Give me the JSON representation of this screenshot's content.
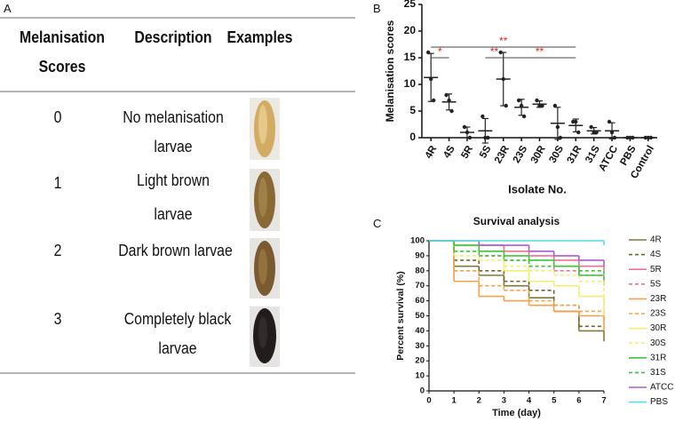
{
  "panel_labels": [
    "A",
    "B",
    "C"
  ],
  "table": {
    "headers": [
      "Melanisation Scores",
      "Description",
      "Examples"
    ],
    "rows": [
      [
        "0",
        "No melanisation larvae"
      ],
      [
        "1",
        "Light brown larvae"
      ],
      [
        "2",
        "Dark brown larvae"
      ],
      [
        "3",
        "Completely black larvae"
      ]
    ]
  },
  "chart_data": [
    {
      "type": "dotplot",
      "ylabel": "Melanisation scores",
      "xlabel": "Isolate No.",
      "categories": [
        "4R",
        "4S",
        "5R",
        "5S",
        "23R",
        "23S",
        "30R",
        "30S",
        "31R",
        "31S",
        "ATCC",
        "PBS",
        "Control"
      ],
      "points": [
        [
          16,
          11,
          7
        ],
        [
          8,
          7,
          5
        ],
        [
          2,
          1,
          0
        ],
        [
          4,
          0,
          0
        ],
        [
          16,
          11,
          6
        ],
        [
          7,
          6,
          4
        ],
        [
          7,
          6,
          6
        ],
        [
          6,
          2,
          0
        ],
        [
          3,
          3,
          1
        ],
        [
          2,
          1,
          1
        ],
        [
          3,
          1,
          0
        ],
        [
          0,
          0,
          0
        ],
        [
          0,
          0,
          0
        ]
      ],
      "means": [
        11.3,
        6.7,
        1,
        1.3,
        11,
        5.7,
        6.3,
        2.7,
        2.3,
        1.3,
        1.3,
        0,
        0
      ],
      "sd": [
        4.5,
        1.5,
        1,
        2.3,
        5,
        1.5,
        0.6,
        3,
        1.2,
        0.6,
        1.5,
        0,
        0
      ],
      "color": "#222222",
      "ylim": [
        0,
        25
      ],
      "yticks": [
        0,
        5,
        10,
        15,
        20,
        25
      ],
      "annotations": [
        {
          "label": "**",
          "from": 0,
          "to": 8,
          "y": 17
        },
        {
          "label": "*",
          "from": 0,
          "to": 1,
          "y": 15
        },
        {
          "label": "**",
          "from": 3,
          "to": 4,
          "y": 15
        },
        {
          "label": "**",
          "from": 4,
          "to": 8,
          "y": 15
        }
      ],
      "annotation_color": "#e02020"
    },
    {
      "type": "step_line",
      "title": "Survival analysis",
      "xlabel": "Time (day)",
      "ylabel": "Percent survival (%)",
      "x": [
        0,
        1,
        2,
        3,
        4,
        5,
        6,
        7
      ],
      "xlim": [
        0,
        7
      ],
      "xticks": [
        0,
        1,
        2,
        3,
        4,
        5,
        6,
        7
      ],
      "ylim": [
        0,
        100
      ],
      "yticks": [
        0,
        10,
        20,
        30,
        40,
        50,
        60,
        70,
        80,
        90,
        100
      ],
      "series": [
        {
          "name": "4R",
          "color": "#7f7a3a",
          "dashed": false,
          "values": [
            100,
            83,
            77,
            70,
            62,
            53,
            40,
            33
          ]
        },
        {
          "name": "4S",
          "color": "#6b6630",
          "dashed": true,
          "values": [
            100,
            87,
            80,
            73,
            67,
            57,
            43,
            43
          ]
        },
        {
          "name": "5R",
          "color": "#f07090",
          "dashed": false,
          "values": [
            100,
            97,
            97,
            93,
            90,
            87,
            83,
            80
          ]
        },
        {
          "name": "5S",
          "color": "#f07090",
          "dashed": true,
          "values": [
            100,
            93,
            90,
            87,
            83,
            80,
            77,
            70
          ]
        },
        {
          "name": "23R",
          "color": "#f5a048",
          "dashed": false,
          "values": [
            100,
            73,
            63,
            60,
            57,
            53,
            50,
            40
          ]
        },
        {
          "name": "23S",
          "color": "#f5a048",
          "dashed": true,
          "values": [
            100,
            80,
            70,
            67,
            60,
            57,
            53,
            47
          ]
        },
        {
          "name": "30R",
          "color": "#f2ee70",
          "dashed": false,
          "values": [
            100,
            97,
            93,
            80,
            73,
            70,
            63,
            50
          ]
        },
        {
          "name": "30S",
          "color": "#f2ee70",
          "dashed": true,
          "values": [
            100,
            90,
            87,
            83,
            80,
            77,
            73,
            63
          ]
        },
        {
          "name": "31R",
          "color": "#38c838",
          "dashed": false,
          "values": [
            100,
            97,
            93,
            90,
            87,
            83,
            77,
            77
          ]
        },
        {
          "name": "31S",
          "color": "#38c838",
          "dashed": true,
          "values": [
            100,
            93,
            90,
            87,
            83,
            83,
            80,
            73
          ]
        },
        {
          "name": "ATCC",
          "color": "#b058d0",
          "dashed": false,
          "values": [
            100,
            100,
            97,
            97,
            93,
            90,
            87,
            83
          ]
        },
        {
          "name": "PBS",
          "color": "#50e0e8",
          "dashed": false,
          "values": [
            100,
            100,
            100,
            100,
            100,
            100,
            100,
            97
          ]
        }
      ]
    }
  ]
}
